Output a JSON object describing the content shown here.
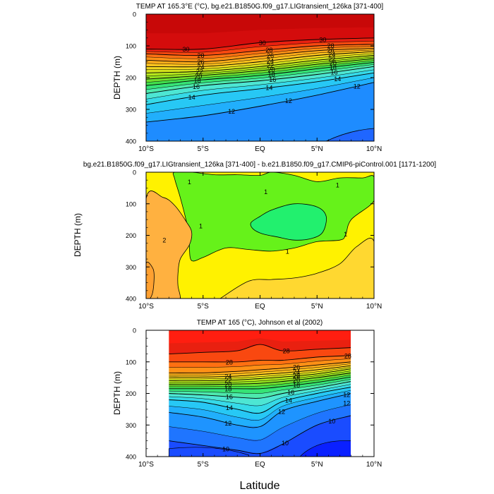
{
  "figure": {
    "xlabel": "Latitude"
  },
  "chart_data": [
    {
      "type": "heatmap",
      "title": "TEMP AT 165.3°E (°C), bg.e21.B1850G.f09_g17.LIGtransient_126ka [371-400]",
      "xlabel": "",
      "ylabel": "DEPTH (m)",
      "xlim": [
        -10,
        10
      ],
      "ylim": [
        400,
        0
      ],
      "x_ticks": [
        -10,
        -5,
        0,
        5,
        10
      ],
      "x_tick_labels": [
        "10°S",
        "5°S",
        "EQ",
        "5°N",
        "10°N"
      ],
      "y_ticks": [
        0,
        100,
        200,
        300,
        400
      ],
      "y_tick_labels": [
        "0",
        "100",
        "200",
        "300",
        "400"
      ],
      "contour_interval": 1,
      "contour_level_labels": [
        "30",
        "30",
        "30",
        "28",
        "28",
        "28",
        "26",
        "26",
        "26",
        "24",
        "24",
        "24",
        "22",
        "22",
        "22",
        "20",
        "20",
        "20",
        "18",
        "18",
        "18",
        "16",
        "16",
        "16",
        "14",
        "14",
        "14",
        "12",
        "12",
        "12"
      ],
      "isotherms": [
        {
          "level": 30,
          "x": [
            -10,
            -5,
            0,
            5,
            10
          ],
          "depth": [
            110,
            110,
            90,
            80,
            75
          ]
        },
        {
          "level": 28,
          "x": [
            -10,
            -5,
            0,
            5,
            10
          ],
          "depth": [
            125,
            130,
            115,
            100,
            95
          ]
        },
        {
          "level": 26,
          "x": [
            -10,
            -5,
            0,
            5,
            10
          ],
          "depth": [
            145,
            150,
            133,
            115,
            108
          ]
        },
        {
          "level": 24,
          "x": [
            -10,
            -5,
            0,
            5,
            10
          ],
          "depth": [
            165,
            165,
            150,
            130,
            118
          ]
        },
        {
          "level": 22,
          "x": [
            -10,
            -5,
            0,
            5,
            10
          ],
          "depth": [
            185,
            180,
            165,
            145,
            130
          ]
        },
        {
          "level": 20,
          "x": [
            -10,
            -5,
            0,
            5,
            10
          ],
          "depth": [
            205,
            193,
            178,
            158,
            140
          ]
        },
        {
          "level": 18,
          "x": [
            -10,
            -5,
            0,
            5,
            10
          ],
          "depth": [
            225,
            207,
            193,
            172,
            152
          ]
        },
        {
          "level": 16,
          "x": [
            -10,
            -5,
            0,
            5,
            10
          ],
          "depth": [
            250,
            225,
            210,
            190,
            165
          ]
        },
        {
          "level": 14,
          "x": [
            -10,
            -5,
            0,
            5,
            10
          ],
          "depth": [
            285,
            255,
            235,
            213,
            185
          ]
        },
        {
          "level": 12,
          "x": [
            -10,
            -5,
            0,
            5,
            10
          ],
          "depth": [
            340,
            320,
            290,
            255,
            215
          ]
        }
      ],
      "cold_core": {
        "level": 10,
        "x": [
          5.8,
          10
        ],
        "depth": [
          400,
          360
        ]
      }
    },
    {
      "type": "heatmap",
      "title": "bg.e21.B1850G.f09_g17.LIGtransient_126ka [371-400] - b.e21.B1850.f09_g17.CMIP6-piControl.001 [1171-1200]",
      "xlabel": "",
      "ylabel": "DEPTH (m)",
      "xlim": [
        -10,
        10
      ],
      "ylim": [
        400,
        0
      ],
      "x_ticks": [
        -10,
        -5,
        0,
        5,
        10
      ],
      "x_tick_labels": [
        "10°S",
        "5°S",
        "EQ",
        "5°N",
        "10°N"
      ],
      "y_ticks": [
        0,
        100,
        200,
        300,
        400
      ],
      "y_tick_labels": [
        "0",
        "100",
        "200",
        "300",
        "400"
      ],
      "contour_level_labels": [
        "1",
        "1",
        "1",
        "1",
        "1",
        "1",
        "2"
      ],
      "regions": [
        {
          "range": "< 1 (green)",
          "x": [
            -7.5,
            -6,
            -4,
            -2,
            0,
            1,
            3,
            5,
            7,
            9,
            10,
            10,
            8,
            7.5,
            7,
            5,
            3,
            1,
            -1,
            -3,
            -5,
            -6,
            -6.2,
            -6.2,
            -6.5,
            -7,
            -7.5
          ],
          "depth": [
            0,
            0,
            8,
            8,
            10,
            0,
            10,
            30,
            18,
            18,
            15,
            90,
            150,
            200,
            215,
            220,
            240,
            250,
            245,
            240,
            270,
            280,
            240,
            200,
            150,
            80,
            20
          ]
        },
        {
          "range": "< 0.5 (light green)",
          "x": [
            0,
            1,
            3,
            5,
            5.8,
            5.5,
            4.5,
            3,
            1.5,
            0.2,
            -0.6,
            -0.8
          ],
          "depth": [
            140,
            120,
            100,
            110,
            140,
            190,
            210,
            215,
            205,
            195,
            180,
            160
          ]
        },
        {
          "range": "> 1.5 (light orange)",
          "x": [
            -10,
            -8.5,
            -7.5,
            -6.5,
            -6,
            -6.2,
            -7,
            -7.2,
            -7.2,
            -7,
            -7.3,
            -10
          ],
          "depth": [
            85,
            80,
            105,
            155,
            190,
            230,
            275,
            320,
            360,
            395,
            400,
            400
          ]
        },
        {
          "range": "> 1.5 (right)",
          "x": [
            -3.5,
            -1,
            1,
            3,
            5,
            7,
            8.5,
            10,
            10,
            -3.5
          ],
          "depth": [
            400,
            345,
            340,
            335,
            320,
            290,
            235,
            220,
            400,
            400
          ]
        },
        {
          "range": "> 2 (orange)",
          "x": [
            -10,
            -9.4,
            -9.3,
            -9.5,
            -10
          ],
          "depth": [
            290,
            305,
            340,
            390,
            400
          ]
        }
      ]
    },
    {
      "type": "heatmap",
      "title": "TEMP AT 165 (°C), Johnson et al (2002)",
      "xlabel": "Latitude",
      "ylabel": "DEPTH (m)",
      "xlim": [
        -10,
        10
      ],
      "ylim": [
        400,
        0
      ],
      "data_xlim": [
        -8,
        8
      ],
      "x_ticks": [
        -10,
        -5,
        0,
        5,
        10
      ],
      "x_tick_labels": [
        "10°S",
        "5°S",
        "EQ",
        "5°N",
        "10°N"
      ],
      "y_ticks": [
        0,
        100,
        200,
        300,
        400
      ],
      "y_tick_labels": [
        "0",
        "100",
        "200",
        "300",
        "400"
      ],
      "contour_interval": 1,
      "contour_level_labels": [
        "28",
        "28",
        "28",
        "26",
        "26",
        "24",
        "24",
        "22",
        "22",
        "20",
        "20",
        "18",
        "18",
        "16",
        "16",
        "14",
        "14",
        "12",
        "12",
        "12",
        "12",
        "10",
        "10",
        "10"
      ],
      "isotherms": [
        {
          "level": 29,
          "x": [
            -8,
            -5,
            -2,
            0,
            2,
            5,
            8
          ],
          "depth": [
            75,
            70,
            65,
            45,
            65,
            60,
            55
          ]
        },
        {
          "level": 28,
          "x": [
            -8,
            -5,
            -2,
            0,
            2,
            5,
            8
          ],
          "depth": [
            100,
            100,
            100,
            95,
            95,
            85,
            80
          ]
        },
        {
          "level": 26,
          "x": [
            -8,
            -5,
            -2,
            0,
            2,
            5,
            8
          ],
          "depth": [
            135,
            135,
            130,
            125,
            120,
            110,
            100
          ]
        },
        {
          "level": 24,
          "x": [
            -8,
            -5,
            -2,
            0,
            2,
            5,
            8
          ],
          "depth": [
            148,
            148,
            145,
            140,
            135,
            125,
            112
          ]
        },
        {
          "level": 22,
          "x": [
            -8,
            -5,
            -2,
            0,
            2,
            5,
            8
          ],
          "depth": [
            160,
            160,
            157,
            153,
            148,
            138,
            122
          ]
        },
        {
          "level": 20,
          "x": [
            -8,
            -5,
            -2,
            0,
            2,
            5,
            8
          ],
          "depth": [
            172,
            172,
            170,
            168,
            162,
            150,
            135
          ]
        },
        {
          "level": 18,
          "x": [
            -8,
            -5,
            -2,
            0,
            2,
            5,
            8
          ],
          "depth": [
            185,
            185,
            185,
            185,
            178,
            165,
            148
          ]
        },
        {
          "level": 16,
          "x": [
            -8,
            -5,
            -2,
            0,
            2,
            5,
            8
          ],
          "depth": [
            200,
            205,
            212,
            215,
            200,
            182,
            162
          ]
        },
        {
          "level": 14,
          "x": [
            -8,
            -5,
            -2,
            0,
            2,
            5,
            8
          ],
          "depth": [
            220,
            228,
            250,
            262,
            225,
            200,
            180
          ]
        },
        {
          "level": 12,
          "x": [
            -8,
            -5,
            -2,
            0,
            2,
            5,
            8
          ],
          "depth": [
            260,
            275,
            300,
            305,
            255,
            225,
            200
          ]
        },
        {
          "level": 10,
          "x": [
            -8,
            -5,
            -2,
            0,
            2,
            5,
            8
          ],
          "depth": [
            350,
            365,
            380,
            390,
            360,
            300,
            270
          ]
        }
      ]
    }
  ]
}
